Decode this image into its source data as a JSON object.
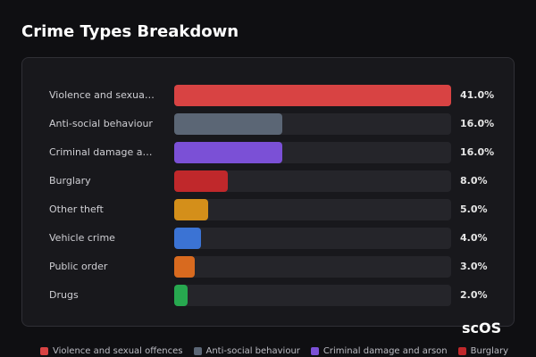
{
  "chart_data": {
    "type": "bar",
    "orientation": "horizontal",
    "title": "Crime Types Breakdown",
    "categories": [
      "Violence and sexual offences",
      "Anti-social behaviour",
      "Criminal damage and arson",
      "Burglary",
      "Other theft",
      "Vehicle crime",
      "Public order",
      "Drugs"
    ],
    "values": [
      41,
      16,
      16,
      8,
      5,
      4,
      3,
      2
    ],
    "value_labels": [
      "41.0%",
      "16.0%",
      "16.0%",
      "8.0%",
      "5.0%",
      "4.0%",
      "3.0%",
      "2.0%"
    ],
    "colors": [
      "#d84343",
      "#5b6675",
      "#7b50d6",
      "#c0282b",
      "#d48f1a",
      "#3b73d4",
      "#d86a1f",
      "#27a84f"
    ],
    "xlim": [
      0,
      41
    ],
    "watermark": "scOS"
  }
}
